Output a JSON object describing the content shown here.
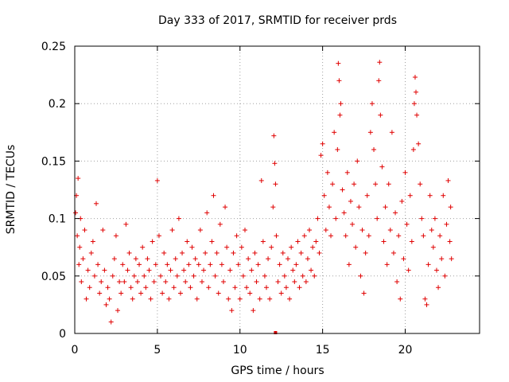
{
  "chart_data": {
    "type": "scatter",
    "title": "Day 333 of 2017, SRMTID for receiver prds",
    "xlabel": "GPS time / hours",
    "ylabel": "SRMTID / TECUs",
    "xlim": [
      0,
      24.5
    ],
    "ylim": [
      0,
      0.25
    ],
    "x_ticks": [
      {
        "value": 0,
        "label": "0"
      },
      {
        "value": 5,
        "label": "5"
      },
      {
        "value": 10,
        "label": "10"
      },
      {
        "value": 15,
        "label": "15"
      },
      {
        "value": 20,
        "label": "20"
      }
    ],
    "y_ticks": [
      {
        "value": 0,
        "label": "0"
      },
      {
        "value": 0.05,
        "label": "0.05"
      },
      {
        "value": 0.1,
        "label": "0.1"
      },
      {
        "value": 0.15,
        "label": "0.15"
      },
      {
        "value": 0.2,
        "label": "0.2"
      },
      {
        "value": 0.25,
        "label": "0.25"
      }
    ],
    "grid": true,
    "series": [
      {
        "name": "SRMTID",
        "color": "#e00000",
        "marker": "plus",
        "points": [
          [
            0.05,
            0.105
          ],
          [
            0.1,
            0.12
          ],
          [
            0.15,
            0.085
          ],
          [
            0.2,
            0.135
          ],
          [
            0.25,
            0.06
          ],
          [
            0.3,
            0.075
          ],
          [
            0.35,
            0.1
          ],
          [
            0.4,
            0.045
          ],
          [
            0.5,
            0.065
          ],
          [
            0.6,
            0.09
          ],
          [
            0.7,
            0.03
          ],
          [
            0.8,
            0.055
          ],
          [
            0.9,
            0.04
          ],
          [
            1.0,
            0.07
          ],
          [
            1.1,
            0.08
          ],
          [
            1.2,
            0.05
          ],
          [
            1.3,
            0.113
          ],
          [
            1.4,
            0.06
          ],
          [
            1.5,
            0.035
          ],
          [
            1.6,
            0.045
          ],
          [
            1.7,
            0.09
          ],
          [
            1.8,
            0.055
          ],
          [
            1.9,
            0.025
          ],
          [
            2.0,
            0.04
          ],
          [
            2.1,
            0.03
          ],
          [
            2.2,
            0.01
          ],
          [
            2.3,
            0.05
          ],
          [
            2.4,
            0.065
          ],
          [
            2.5,
            0.085
          ],
          [
            2.6,
            0.02
          ],
          [
            2.7,
            0.045
          ],
          [
            2.8,
            0.035
          ],
          [
            2.9,
            0.06
          ],
          [
            3.0,
            0.045
          ],
          [
            3.1,
            0.095
          ],
          [
            3.2,
            0.055
          ],
          [
            3.3,
            0.07
          ],
          [
            3.4,
            0.04
          ],
          [
            3.5,
            0.03
          ],
          [
            3.6,
            0.05
          ],
          [
            3.7,
            0.065
          ],
          [
            3.8,
            0.045
          ],
          [
            3.9,
            0.06
          ],
          [
            4.0,
            0.035
          ],
          [
            4.1,
            0.075
          ],
          [
            4.2,
            0.05
          ],
          [
            4.3,
            0.04
          ],
          [
            4.4,
            0.065
          ],
          [
            4.5,
            0.055
          ],
          [
            4.6,
            0.03
          ],
          [
            4.7,
            0.08
          ],
          [
            4.8,
            0.045
          ],
          [
            4.9,
            0.06
          ],
          [
            5.0,
            0.133
          ],
          [
            5.1,
            0.085
          ],
          [
            5.2,
            0.05
          ],
          [
            5.3,
            0.035
          ],
          [
            5.4,
            0.07
          ],
          [
            5.5,
            0.045
          ],
          [
            5.6,
            0.06
          ],
          [
            5.7,
            0.03
          ],
          [
            5.8,
            0.055
          ],
          [
            5.9,
            0.09
          ],
          [
            6.0,
            0.04
          ],
          [
            6.1,
            0.065
          ],
          [
            6.2,
            0.05
          ],
          [
            6.3,
            0.1
          ],
          [
            6.4,
            0.035
          ],
          [
            6.5,
            0.07
          ],
          [
            6.6,
            0.055
          ],
          [
            6.7,
            0.045
          ],
          [
            6.8,
            0.08
          ],
          [
            6.9,
            0.06
          ],
          [
            7.0,
            0.04
          ],
          [
            7.1,
            0.075
          ],
          [
            7.2,
            0.05
          ],
          [
            7.3,
            0.065
          ],
          [
            7.4,
            0.03
          ],
          [
            7.5,
            0.06
          ],
          [
            7.6,
            0.09
          ],
          [
            7.7,
            0.045
          ],
          [
            7.8,
            0.055
          ],
          [
            7.9,
            0.07
          ],
          [
            8.0,
            0.105
          ],
          [
            8.1,
            0.04
          ],
          [
            8.2,
            0.06
          ],
          [
            8.3,
            0.08
          ],
          [
            8.4,
            0.12
          ],
          [
            8.5,
            0.05
          ],
          [
            8.6,
            0.07
          ],
          [
            8.7,
            0.035
          ],
          [
            8.8,
            0.095
          ],
          [
            8.9,
            0.06
          ],
          [
            9.0,
            0.045
          ],
          [
            9.1,
            0.11
          ],
          [
            9.2,
            0.075
          ],
          [
            9.3,
            0.03
          ],
          [
            9.4,
            0.055
          ],
          [
            9.5,
            0.02
          ],
          [
            9.6,
            0.07
          ],
          [
            9.7,
            0.04
          ],
          [
            9.8,
            0.085
          ],
          [
            9.9,
            0.06
          ],
          [
            10.0,
            0.03
          ],
          [
            10.1,
            0.075
          ],
          [
            10.2,
            0.05
          ],
          [
            10.3,
            0.09
          ],
          [
            10.4,
            0.04
          ],
          [
            10.5,
            0.065
          ],
          [
            10.6,
            0.035
          ],
          [
            10.7,
            0.055
          ],
          [
            10.8,
            0.02
          ],
          [
            10.9,
            0.07
          ],
          [
            11.0,
            0.045
          ],
          [
            11.1,
            0.06
          ],
          [
            11.2,
            0.03
          ],
          [
            11.3,
            0.133
          ],
          [
            11.4,
            0.08
          ],
          [
            11.5,
            0.05
          ],
          [
            11.6,
            0.04
          ],
          [
            11.7,
            0.065
          ],
          [
            11.8,
            0.03
          ],
          [
            11.9,
            0.075
          ],
          [
            12.0,
            0.11
          ],
          [
            12.05,
            0.172
          ],
          [
            12.1,
            0.148
          ],
          [
            12.15,
            0.13
          ],
          [
            12.2,
            0.085
          ],
          [
            12.3,
            0.045
          ],
          [
            12.4,
            0.06
          ],
          [
            12.5,
            0.035
          ],
          [
            12.6,
            0.07
          ],
          [
            12.7,
            0.05
          ],
          [
            12.8,
            0.04
          ],
          [
            12.9,
            0.065
          ],
          [
            13.0,
            0.03
          ],
          [
            13.1,
            0.075
          ],
          [
            13.2,
            0.055
          ],
          [
            13.3,
            0.045
          ],
          [
            13.4,
            0.06
          ],
          [
            13.5,
            0.08
          ],
          [
            13.6,
            0.04
          ],
          [
            13.7,
            0.07
          ],
          [
            13.8,
            0.05
          ],
          [
            13.9,
            0.085
          ],
          [
            14.0,
            0.045
          ],
          [
            14.1,
            0.065
          ],
          [
            14.2,
            0.09
          ],
          [
            14.3,
            0.055
          ],
          [
            14.4,
            0.075
          ],
          [
            14.5,
            0.05
          ],
          [
            14.6,
            0.08
          ],
          [
            14.7,
            0.1
          ],
          [
            14.8,
            0.07
          ],
          [
            14.9,
            0.155
          ],
          [
            15.0,
            0.165
          ],
          [
            15.1,
            0.12
          ],
          [
            15.2,
            0.09
          ],
          [
            15.3,
            0.14
          ],
          [
            15.4,
            0.11
          ],
          [
            15.5,
            0.085
          ],
          [
            15.6,
            0.13
          ],
          [
            15.7,
            0.175
          ],
          [
            15.8,
            0.1
          ],
          [
            15.9,
            0.16
          ],
          [
            15.95,
            0.235
          ],
          [
            16.0,
            0.22
          ],
          [
            16.05,
            0.19
          ],
          [
            16.1,
            0.2
          ],
          [
            16.2,
            0.125
          ],
          [
            16.3,
            0.105
          ],
          [
            16.4,
            0.085
          ],
          [
            16.5,
            0.14
          ],
          [
            16.6,
            0.06
          ],
          [
            16.7,
            0.115
          ],
          [
            16.8,
            0.095
          ],
          [
            16.9,
            0.13
          ],
          [
            17.0,
            0.075
          ],
          [
            17.1,
            0.15
          ],
          [
            17.2,
            0.11
          ],
          [
            17.3,
            0.05
          ],
          [
            17.4,
            0.09
          ],
          [
            17.5,
            0.035
          ],
          [
            17.6,
            0.07
          ],
          [
            17.7,
            0.12
          ],
          [
            17.8,
            0.085
          ],
          [
            17.9,
            0.175
          ],
          [
            18.0,
            0.2
          ],
          [
            18.1,
            0.16
          ],
          [
            18.2,
            0.13
          ],
          [
            18.3,
            0.1
          ],
          [
            18.4,
            0.22
          ],
          [
            18.45,
            0.236
          ],
          [
            18.5,
            0.19
          ],
          [
            18.6,
            0.145
          ],
          [
            18.7,
            0.08
          ],
          [
            18.8,
            0.11
          ],
          [
            18.9,
            0.06
          ],
          [
            19.0,
            0.13
          ],
          [
            19.1,
            0.09
          ],
          [
            19.2,
            0.175
          ],
          [
            19.3,
            0.07
          ],
          [
            19.4,
            0.105
          ],
          [
            19.5,
            0.045
          ],
          [
            19.6,
            0.085
          ],
          [
            19.7,
            0.03
          ],
          [
            19.8,
            0.115
          ],
          [
            19.9,
            0.065
          ],
          [
            20.0,
            0.14
          ],
          [
            20.1,
            0.095
          ],
          [
            20.2,
            0.055
          ],
          [
            20.3,
            0.12
          ],
          [
            20.4,
            0.08
          ],
          [
            20.5,
            0.16
          ],
          [
            20.55,
            0.2
          ],
          [
            20.6,
            0.223
          ],
          [
            20.65,
            0.21
          ],
          [
            20.7,
            0.19
          ],
          [
            20.8,
            0.165
          ],
          [
            20.9,
            0.13
          ],
          [
            21.0,
            0.1
          ],
          [
            21.1,
            0.085
          ],
          [
            21.2,
            0.03
          ],
          [
            21.3,
            0.025
          ],
          [
            21.4,
            0.06
          ],
          [
            21.5,
            0.12
          ],
          [
            21.6,
            0.09
          ],
          [
            21.7,
            0.075
          ],
          [
            21.8,
            0.1
          ],
          [
            21.9,
            0.055
          ],
          [
            22.0,
            0.04
          ],
          [
            22.1,
            0.085
          ],
          [
            22.2,
            0.065
          ],
          [
            22.3,
            0.12
          ],
          [
            22.4,
            0.05
          ],
          [
            22.5,
            0.095
          ],
          [
            22.6,
            0.133
          ],
          [
            22.7,
            0.08
          ],
          [
            22.75,
            0.11
          ],
          [
            22.8,
            0.065
          ]
        ]
      }
    ],
    "annotations": [
      {
        "type": "marker",
        "x": 12.15,
        "y": 0.0,
        "shape": "square"
      }
    ]
  }
}
